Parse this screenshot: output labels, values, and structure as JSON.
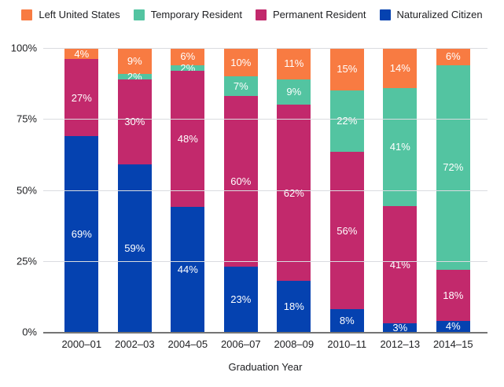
{
  "chart_data": {
    "type": "bar",
    "stacked": true,
    "xlabel": "Graduation Year",
    "ylim": [
      0,
      100
    ],
    "y_ticks": [
      0,
      25,
      50,
      75,
      100
    ],
    "y_tick_labels": [
      "0%",
      "25%",
      "50%",
      "75%",
      "100%"
    ],
    "grid": true,
    "legend_position": "top",
    "label_format": "percent",
    "categories": [
      "2000–01",
      "2002–03",
      "2004–05",
      "2006–07",
      "2008–09",
      "2010–11",
      "2012–13",
      "2014–15"
    ],
    "series": [
      {
        "name": "Naturalized Citizen",
        "color": "#0542B0",
        "values": [
          69,
          59,
          44,
          23,
          18,
          8,
          3,
          4
        ]
      },
      {
        "name": "Permanent Resident",
        "color": "#C2296C",
        "values": [
          27,
          30,
          48,
          60,
          62,
          56,
          41,
          18
        ]
      },
      {
        "name": "Temporary Resident",
        "color": "#53C4A1",
        "values": [
          0,
          2,
          2,
          7,
          9,
          22,
          41,
          72
        ]
      },
      {
        "name": "Left United States",
        "color": "#F87B42",
        "values": [
          4,
          9,
          6,
          10,
          11,
          15,
          14,
          6
        ]
      }
    ],
    "legend_order": [
      "Left United States",
      "Temporary Resident",
      "Permanent Resident",
      "Naturalized Citizen"
    ],
    "colors": {
      "grid": "#DADCE0",
      "axis": "#757575",
      "text": "#202124",
      "label": "#FFFFFF",
      "background": "#FFFFFF"
    }
  }
}
